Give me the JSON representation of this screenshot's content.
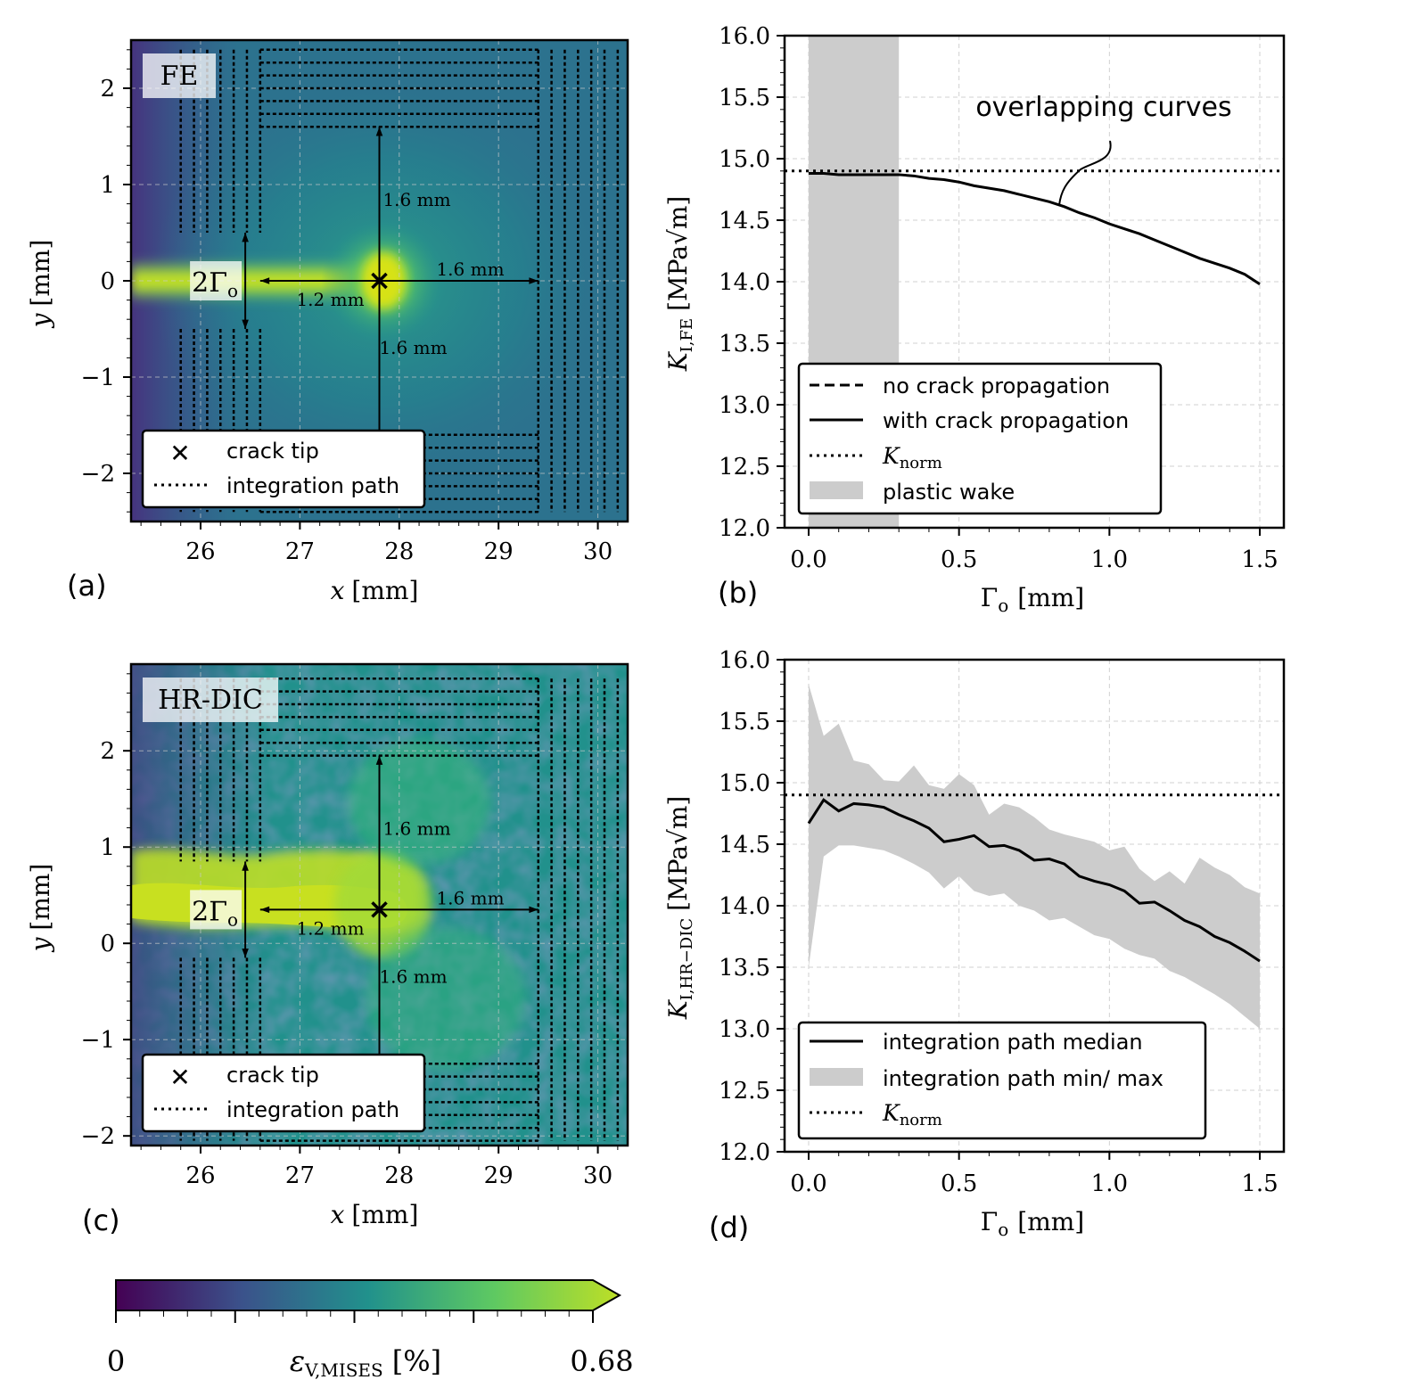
{
  "colors": {
    "viridis": [
      "#440154",
      "#3b528b",
      "#21918c",
      "#5ec962",
      "#bddf26"
    ],
    "grid": "#c8c8c8",
    "band": "#cccccc",
    "line": "#000000"
  },
  "panels": {
    "a": {
      "label": "(a)",
      "title_box": "FE",
      "xlabel_var": "x",
      "xlabel_unit": "[mm]",
      "ylabel_var": "y",
      "ylabel_unit": "[mm]",
      "xlim": [
        25.3,
        30.3
      ],
      "ylim": [
        -2.5,
        2.5
      ],
      "xticks": [
        "26",
        "27",
        "28",
        "29",
        "30"
      ],
      "yticks": [
        "2",
        "1",
        "0",
        "−1",
        "−2"
      ],
      "annot": {
        "gamma": "2Γ",
        "gamma_sub": "o",
        "d_left": "1.2 mm",
        "d_right": "1.6 mm",
        "d_up": "1.6 mm",
        "d_down": "1.6 mm"
      },
      "legend": {
        "crack_tip": "crack tip",
        "path": "integration path"
      }
    },
    "c": {
      "label": "(c)",
      "title_box": "HR-DIC",
      "xlabel_var": "x",
      "xlabel_unit": "[mm]",
      "ylabel_var": "y",
      "ylabel_unit": "[mm]",
      "xlim": [
        25.3,
        30.3
      ],
      "ylim": [
        -2.1,
        2.9
      ],
      "xticks": [
        "26",
        "27",
        "28",
        "29",
        "30"
      ],
      "yticks": [
        "2",
        "1",
        "0",
        "−1",
        "−2"
      ],
      "annot": {
        "gamma": "2Γ",
        "gamma_sub": "o",
        "d_left": "1.2 mm",
        "d_right": "1.6 mm",
        "d_up": "1.6 mm",
        "d_down": "1.6 mm"
      },
      "legend": {
        "crack_tip": "crack tip",
        "path": "integration path"
      }
    },
    "b": {
      "label": "(b)",
      "xlabel_main": "Γ",
      "xlabel_sub": "o",
      "xlabel_unit": "[mm]",
      "ylabel_main": "K",
      "ylabel_sub": "I,FE",
      "ylabel_unit": "[MPa√m]",
      "annotation": "overlapping curves",
      "legend": {
        "no_prop": "no crack propagation",
        "with_prop": "with crack propagation",
        "knorm_main": "K",
        "knorm_sub": "norm",
        "wake": "plastic wake"
      }
    },
    "d": {
      "label": "(d)",
      "xlabel_main": "Γ",
      "xlabel_sub": "o",
      "xlabel_unit": "[mm]",
      "ylabel_main": "K",
      "ylabel_sub": "I,HR−DIC",
      "ylabel_unit": "[MPa√m]",
      "legend": {
        "median": "integration path median",
        "minmax": "integration path min/ max",
        "knorm_main": "K",
        "knorm_sub": "norm"
      }
    },
    "colorbar": {
      "min_label": "0",
      "max_label": "0.68",
      "label_main": "ε",
      "label_sub": "V,MISES",
      "label_unit": "[%]"
    }
  },
  "chart_data": [
    {
      "id": "b",
      "type": "line",
      "xlim": [
        -0.08,
        1.58
      ],
      "ylim": [
        12.0,
        16.0
      ],
      "xticks": [
        0.0,
        0.5,
        1.0,
        1.5
      ],
      "xtick_labels": [
        "0.0",
        "0.5",
        "1.0",
        "1.5"
      ],
      "yticks": [
        12.0,
        12.5,
        13.0,
        13.5,
        14.0,
        14.5,
        15.0,
        15.5,
        16.0
      ],
      "ytick_labels": [
        "12.0",
        "12.5",
        "13.0",
        "13.5",
        "14.0",
        "14.5",
        "15.0",
        "15.5",
        "16.0"
      ],
      "k_norm": 14.9,
      "plastic_wake": [
        0.0,
        0.3
      ],
      "series": [
        {
          "name": "with crack propagation",
          "x": [
            0.0,
            0.05,
            0.1,
            0.15,
            0.2,
            0.25,
            0.3,
            0.35,
            0.4,
            0.45,
            0.5,
            0.55,
            0.6,
            0.65,
            0.7,
            0.75,
            0.8,
            0.85,
            0.9,
            0.95,
            1.0,
            1.05,
            1.1,
            1.15,
            1.2,
            1.25,
            1.3,
            1.35,
            1.4,
            1.45,
            1.5
          ],
          "y": [
            14.88,
            14.88,
            14.87,
            14.87,
            14.87,
            14.87,
            14.87,
            14.86,
            14.84,
            14.83,
            14.81,
            14.78,
            14.76,
            14.74,
            14.71,
            14.68,
            14.65,
            14.61,
            14.56,
            14.52,
            14.47,
            14.43,
            14.39,
            14.34,
            14.29,
            14.24,
            14.19,
            14.15,
            14.11,
            14.06,
            13.98
          ]
        },
        {
          "name": "no crack propagation",
          "x": [
            0.0,
            0.25,
            0.5,
            0.75,
            1.0,
            1.25,
            1.5
          ],
          "y": [
            14.88,
            14.87,
            14.81,
            14.68,
            14.47,
            14.24,
            13.98
          ]
        }
      ]
    },
    {
      "id": "d",
      "type": "line",
      "xlim": [
        -0.08,
        1.58
      ],
      "ylim": [
        12.0,
        16.0
      ],
      "xticks": [
        0.0,
        0.5,
        1.0,
        1.5
      ],
      "xtick_labels": [
        "0.0",
        "0.5",
        "1.0",
        "1.5"
      ],
      "yticks": [
        12.0,
        12.5,
        13.0,
        13.5,
        14.0,
        14.5,
        15.0,
        15.5,
        16.0
      ],
      "ytick_labels": [
        "12.0",
        "12.5",
        "13.0",
        "13.5",
        "14.0",
        "14.5",
        "15.0",
        "15.5",
        "16.0"
      ],
      "k_norm": 14.9,
      "x": [
        0.0,
        0.05,
        0.1,
        0.15,
        0.2,
        0.25,
        0.3,
        0.35,
        0.4,
        0.45,
        0.5,
        0.55,
        0.6,
        0.65,
        0.7,
        0.75,
        0.8,
        0.85,
        0.9,
        0.95,
        1.0,
        1.05,
        1.1,
        1.15,
        1.2,
        1.25,
        1.3,
        1.35,
        1.4,
        1.45,
        1.5
      ],
      "median": [
        14.67,
        14.86,
        14.77,
        14.83,
        14.82,
        14.8,
        14.74,
        14.69,
        14.63,
        14.52,
        14.54,
        14.57,
        14.48,
        14.49,
        14.45,
        14.37,
        14.38,
        14.34,
        14.24,
        14.2,
        14.17,
        14.12,
        14.02,
        14.03,
        13.96,
        13.88,
        13.83,
        13.75,
        13.7,
        13.63,
        13.55
      ],
      "max": [
        15.8,
        15.38,
        15.48,
        15.18,
        15.15,
        15.02,
        15.01,
        15.14,
        14.98,
        14.95,
        15.07,
        14.98,
        14.74,
        14.83,
        14.8,
        14.72,
        14.62,
        14.58,
        14.55,
        14.52,
        14.45,
        14.48,
        14.3,
        14.2,
        14.28,
        14.18,
        14.39,
        14.31,
        14.25,
        14.15,
        14.1
      ],
      "min": [
        13.5,
        14.4,
        14.49,
        14.49,
        14.47,
        14.45,
        14.4,
        14.34,
        14.27,
        14.14,
        14.24,
        14.12,
        14.08,
        14.1,
        14.0,
        13.96,
        13.88,
        13.9,
        13.83,
        13.76,
        13.73,
        13.65,
        13.6,
        13.57,
        13.47,
        13.42,
        13.35,
        13.28,
        13.2,
        13.1,
        13.0
      ]
    }
  ]
}
